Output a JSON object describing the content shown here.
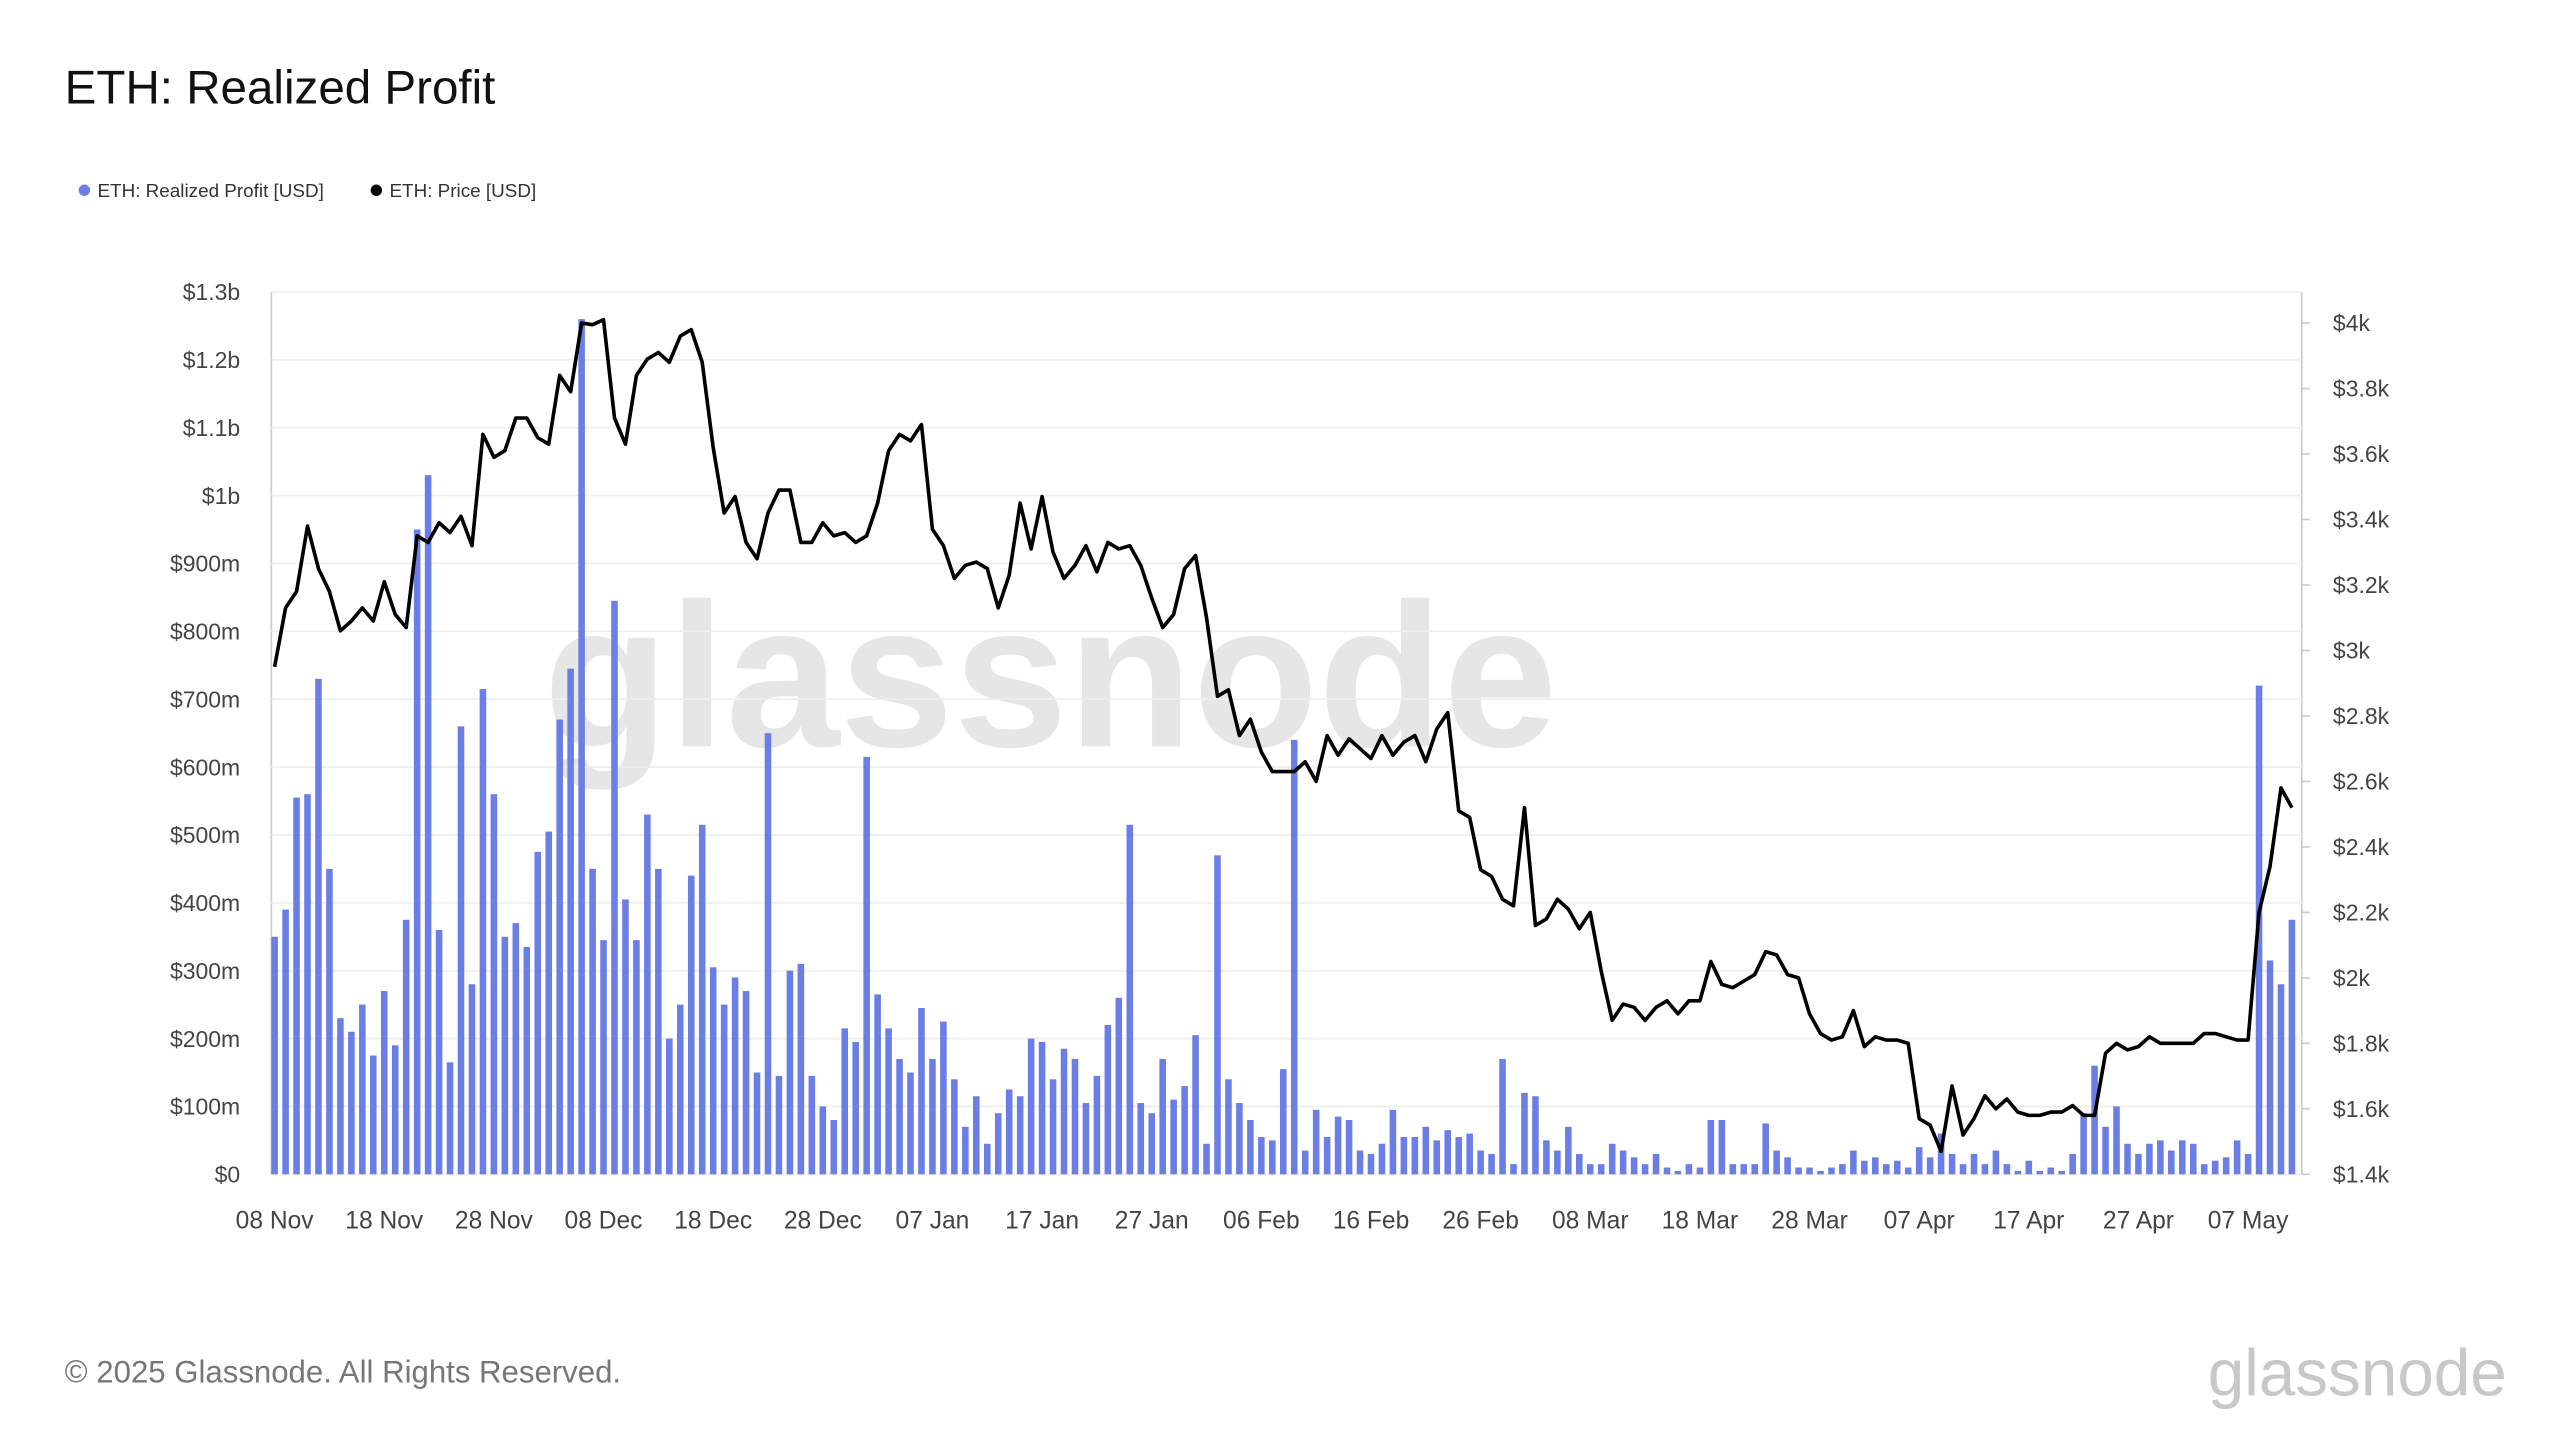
{
  "chart_data": {
    "type": "bar-line",
    "title": "ETH: Realized Profit",
    "watermark": "glassnode",
    "footer": "© 2025 Glassnode. All Rights Reserved.",
    "logo": "glassnode",
    "categories": [
      "08 Nov",
      null,
      null,
      null,
      null,
      null,
      null,
      null,
      null,
      null,
      "18 Nov",
      null,
      null,
      null,
      null,
      null,
      null,
      null,
      null,
      null,
      "28 Nov",
      null,
      null,
      null,
      null,
      null,
      null,
      null,
      null,
      null,
      "08 Dec",
      null,
      null,
      null,
      null,
      null,
      null,
      null,
      null,
      null,
      "18 Dec",
      null,
      null,
      null,
      null,
      null,
      null,
      null,
      null,
      null,
      "28 Dec",
      null,
      null,
      null,
      null,
      null,
      null,
      null,
      null,
      null,
      "07 Jan",
      null,
      null,
      null,
      null,
      null,
      null,
      null,
      null,
      null,
      "17 Jan",
      null,
      null,
      null,
      null,
      null,
      null,
      null,
      null,
      null,
      "27 Jan",
      null,
      null,
      null,
      null,
      null,
      null,
      null,
      null,
      null,
      "06 Feb",
      null,
      null,
      null,
      null,
      null,
      null,
      null,
      null,
      null,
      "16 Feb",
      null,
      null,
      null,
      null,
      null,
      null,
      null,
      null,
      null,
      "26 Feb",
      null,
      null,
      null,
      null,
      null,
      null,
      null,
      null,
      null,
      "08 Mar",
      null,
      null,
      null,
      null,
      null,
      null,
      null,
      null,
      null,
      "18 Mar",
      null,
      null,
      null,
      null,
      null,
      null,
      null,
      null,
      null,
      "28 Mar",
      null,
      null,
      null,
      null,
      null,
      null,
      null,
      null,
      null,
      "07 Apr",
      null,
      null,
      null,
      null,
      null,
      null,
      null,
      null,
      null,
      "17 Apr",
      null,
      null,
      null,
      null,
      null,
      null,
      null,
      null,
      null,
      "27 Apr",
      null,
      null,
      null,
      null,
      null,
      null,
      null,
      null,
      null,
      "07 May",
      null,
      null,
      null,
      null
    ],
    "series": [
      {
        "name": "ETH: Realized Profit [USD]",
        "color": "#6a7ee6",
        "kind": "bar",
        "values": [
          350000000,
          390000000,
          555000000,
          560000000,
          730000000,
          450000000,
          230000000,
          210000000,
          250000000,
          175000000,
          270000000,
          190000000,
          375000000,
          950000000,
          1030000000,
          360000000,
          165000000,
          660000000,
          280000000,
          715000000,
          560000000,
          350000000,
          370000000,
          335000000,
          475000000,
          505000000,
          670000000,
          745000000,
          1260000000,
          450000000,
          345000000,
          845000000,
          405000000,
          345000000,
          530000000,
          450000000,
          200000000,
          250000000,
          440000000,
          515000000,
          305000000,
          250000000,
          290000000,
          270000000,
          150000000,
          650000000,
          145000000,
          300000000,
          310000000,
          145000000,
          100000000,
          80000000,
          215000000,
          195000000,
          615000000,
          265000000,
          215000000,
          170000000,
          150000000,
          245000000,
          170000000,
          225000000,
          140000000,
          70000000,
          115000000,
          45000000,
          90000000,
          125000000,
          115000000,
          200000000,
          195000000,
          140000000,
          185000000,
          170000000,
          105000000,
          145000000,
          220000000,
          260000000,
          515000000,
          105000000,
          90000000,
          170000000,
          110000000,
          130000000,
          205000000,
          45000000,
          470000000,
          140000000,
          105000000,
          80000000,
          55000000,
          50000000,
          155000000,
          640000000,
          35000000,
          95000000,
          55000000,
          85000000,
          80000000,
          35000000,
          30000000,
          45000000,
          95000000,
          55000000,
          55000000,
          70000000,
          50000000,
          65000000,
          55000000,
          60000000,
          35000000,
          30000000,
          170000000,
          15000000,
          120000000,
          115000000,
          50000000,
          35000000,
          70000000,
          30000000,
          15000000,
          15000000,
          45000000,
          35000000,
          25000000,
          15000000,
          30000000,
          10000000,
          5000000,
          15000000,
          10000000,
          80000000,
          80000000,
          15000000,
          15000000,
          15000000,
          75000000,
          35000000,
          25000000,
          10000000,
          10000000,
          5000000,
          10000000,
          15000000,
          35000000,
          20000000,
          25000000,
          15000000,
          20000000,
          10000000,
          40000000,
          25000000,
          60000000,
          30000000,
          15000000,
          30000000,
          15000000,
          35000000,
          15000000,
          5000000,
          20000000,
          5000000,
          10000000,
          5000000,
          30000000,
          90000000,
          160000000,
          70000000,
          100000000,
          45000000,
          30000000,
          45000000,
          50000000,
          35000000,
          50000000,
          45000000,
          15000000,
          20000000,
          25000000,
          50000000,
          30000000,
          720000000,
          315000000,
          280000000,
          375000000
        ]
      },
      {
        "name": "ETH: Price [USD]",
        "color": "#000000",
        "kind": "line",
        "axis": "y2",
        "values": [
          2950,
          3130,
          3180,
          3380,
          3250,
          3180,
          3060,
          3090,
          3130,
          3090,
          3210,
          3110,
          3070,
          3350,
          3330,
          3390,
          3360,
          3410,
          3320,
          3660,
          3590,
          3610,
          3710,
          3710,
          3650,
          3630,
          3840,
          3790,
          4000,
          3995,
          4010,
          3710,
          3630,
          3840,
          3890,
          3910,
          3880,
          3960,
          3980,
          3880,
          3620,
          3420,
          3470,
          3330,
          3280,
          3420,
          3490,
          3490,
          3330,
          3330,
          3390,
          3350,
          3360,
          3330,
          3350,
          3450,
          3610,
          3660,
          3640,
          3690,
          3370,
          3320,
          3220,
          3260,
          3270,
          3250,
          3130,
          3230,
          3450,
          3310,
          3470,
          3300,
          3220,
          3260,
          3320,
          3240,
          3330,
          3310,
          3320,
          3260,
          3160,
          3070,
          3110,
          3250,
          3290,
          3100,
          2860,
          2880,
          2740,
          2790,
          2690,
          2630,
          2630,
          2630,
          2660,
          2600,
          2740,
          2680,
          2730,
          2700,
          2670,
          2740,
          2680,
          2720,
          2740,
          2660,
          2760,
          2810,
          2510,
          2490,
          2330,
          2310,
          2240,
          2220,
          2520,
          2160,
          2180,
          2240,
          2210,
          2150,
          2200,
          2020,
          1870,
          1920,
          1910,
          1870,
          1910,
          1930,
          1890,
          1930,
          1930,
          2050,
          1980,
          1970,
          1990,
          2010,
          2080,
          2070,
          2010,
          2000,
          1890,
          1830,
          1810,
          1820,
          1900,
          1790,
          1820,
          1810,
          1810,
          1800,
          1570,
          1550,
          1470,
          1670,
          1520,
          1570,
          1640,
          1600,
          1630,
          1590,
          1580,
          1580,
          1590,
          1590,
          1610,
          1580,
          1580,
          1770,
          1800,
          1780,
          1790,
          1820,
          1800,
          1800,
          1800,
          1800,
          1830,
          1830,
          1820,
          1810,
          1810,
          2200,
          2340,
          2580,
          2520
        ]
      }
    ],
    "ylim": [
      0,
      1300000000
    ],
    "yticks": [
      {
        "value": 0,
        "label": "$0"
      },
      {
        "value": 100000000,
        "label": "$100m"
      },
      {
        "value": 200000000,
        "label": "$200m"
      },
      {
        "value": 300000000,
        "label": "$300m"
      },
      {
        "value": 400000000,
        "label": "$400m"
      },
      {
        "value": 500000000,
        "label": "$500m"
      },
      {
        "value": 600000000,
        "label": "$600m"
      },
      {
        "value": 700000000,
        "label": "$700m"
      },
      {
        "value": 800000000,
        "label": "$800m"
      },
      {
        "value": 900000000,
        "label": "$900m"
      },
      {
        "value": 1000000000,
        "label": "$1b"
      },
      {
        "value": 1100000000,
        "label": "$1.1b"
      },
      {
        "value": 1200000000,
        "label": "$1.2b"
      },
      {
        "value": 1300000000,
        "label": "$1.3b"
      }
    ],
    "y2lim": [
      1400,
      4095
    ],
    "y2ticks": [
      {
        "value": 1400,
        "label": "$1.4k"
      },
      {
        "value": 1600,
        "label": "$1.6k"
      },
      {
        "value": 1800,
        "label": "$1.8k"
      },
      {
        "value": 2000,
        "label": "$2k"
      },
      {
        "value": 2200,
        "label": "$2.2k"
      },
      {
        "value": 2400,
        "label": "$2.4k"
      },
      {
        "value": 2600,
        "label": "$2.6k"
      },
      {
        "value": 2800,
        "label": "$2.8k"
      },
      {
        "value": 3000,
        "label": "$3k"
      },
      {
        "value": 3200,
        "label": "$3.2k"
      },
      {
        "value": 3400,
        "label": "$3.4k"
      },
      {
        "value": 3600,
        "label": "$3.6k"
      },
      {
        "value": 3800,
        "label": "$3.8k"
      },
      {
        "value": 4000,
        "label": "$4k"
      }
    ],
    "grid": true,
    "legend": "top-left"
  }
}
